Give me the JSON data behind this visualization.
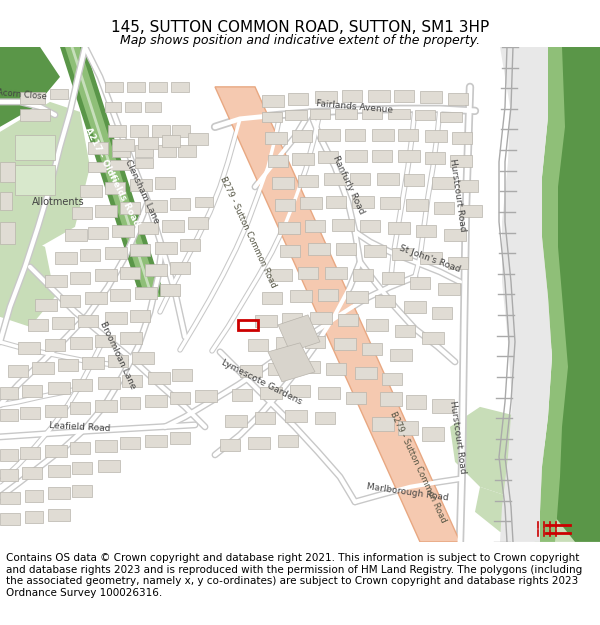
{
  "title": "145, SUTTON COMMON ROAD, SUTTON, SM1 3HP",
  "subtitle": "Map shows position and indicative extent of the property.",
  "footer": "Contains OS data © Crown copyright and database right 2021. This information is subject to Crown copyright and database rights 2023 and is reproduced with the permission of HM Land Registry. The polygons (including the associated geometry, namely x, y co-ordinates) are subject to Crown copyright and database rights 2023 Ordnance Survey 100026316.",
  "bg_color": "#f2f0ec",
  "road_color": "#ffffff",
  "road_outline": "#c8c8c8",
  "major_road_fill": "#f5c9b0",
  "major_road_outline": "#e8a882",
  "green_light": "#c8ddb8",
  "green_dark": "#5a9648",
  "green_mid": "#8fbf78",
  "building_fill": "#e0dcd4",
  "building_outline": "#b8b4ac",
  "railway_gray": "#d0d0d0",
  "railway_line": "#909090",
  "marker_color": "#cc0000",
  "label_color": "#444444",
  "title_fontsize": 11,
  "subtitle_fontsize": 9,
  "footer_fontsize": 7.5,
  "figsize": [
    6.0,
    6.25
  ],
  "dpi": 100
}
